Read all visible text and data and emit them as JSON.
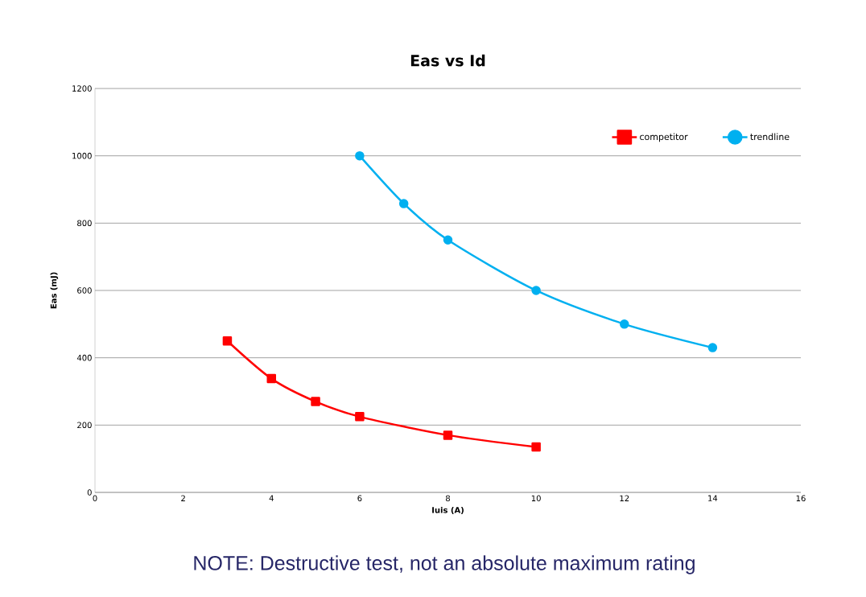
{
  "chart_data": {
    "type": "line",
    "title": "Eas vs Id",
    "xlabel": "Iuis (A)",
    "ylabel": "Eas (mJ)",
    "xlim": [
      0,
      16
    ],
    "xticks": [
      0,
      2,
      4,
      6,
      8,
      10,
      12,
      14,
      16
    ],
    "ylim": [
      0,
      1200
    ],
    "yticks": [
      0,
      200,
      400,
      600,
      800,
      1000,
      1200
    ],
    "grid": "y",
    "legend": "top right",
    "series": [
      {
        "name": "competitor",
        "color": "#ff0000",
        "marker": "square",
        "x": [
          3,
          4,
          5,
          6,
          8,
          10
        ],
        "values": [
          450,
          338,
          270,
          225,
          170,
          135
        ]
      },
      {
        "name": "trendline",
        "color": "#00b0f0",
        "marker": "circle",
        "x": [
          6,
          7,
          8,
          10,
          12,
          14
        ],
        "values": [
          1000,
          858,
          750,
          600,
          500,
          430
        ]
      }
    ],
    "annotations": [
      "NOTE: Destructive test, not an absolute maximum rating"
    ]
  }
}
